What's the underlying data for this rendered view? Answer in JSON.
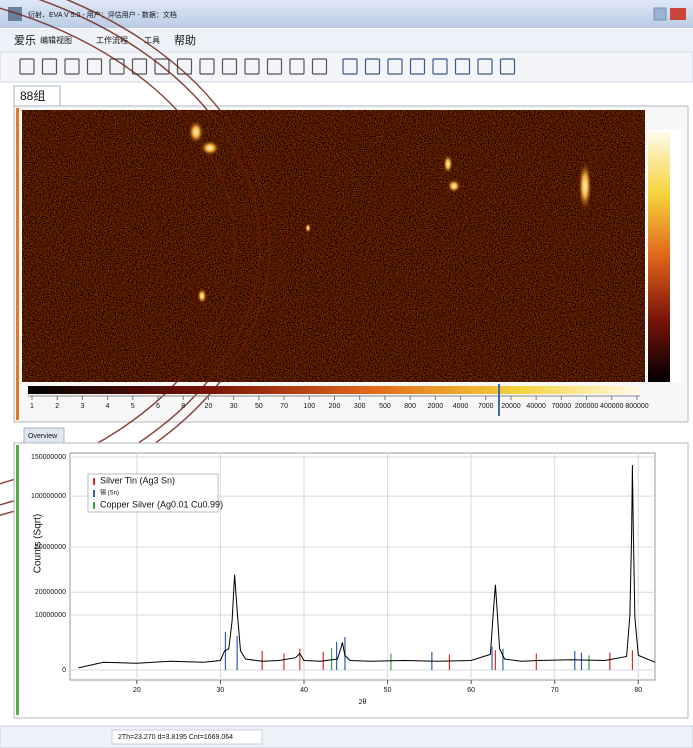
{
  "window": {
    "title": "衍射、EVA V 5.0 - 用户：评估用户 - 数据：文档"
  },
  "menu": [
    "爱乐",
    "编辑视图",
    "工作流程",
    "工具",
    "帮助"
  ],
  "frame_tab": "88组",
  "colorbar": {
    "labels": [
      "1",
      "2",
      "3",
      "4",
      "5",
      "6",
      "8",
      "20",
      "30",
      "50",
      "70",
      "100",
      "200",
      "300",
      "500",
      "800",
      "2000",
      "4000",
      "7000",
      "20000",
      "40000",
      "70000",
      "200000",
      "400000",
      "800000"
    ]
  },
  "overview_tab": "Overview",
  "status": "2Th=23.270 d=3.8195 Cnt=1669.064",
  "chart_data": {
    "type": "line",
    "x_label": "2θ",
    "y_label": "Counts (Sqrt)",
    "xlim": [
      12,
      82
    ],
    "xticks": [
      20,
      30,
      40,
      50,
      60,
      70,
      80
    ],
    "ylim": [
      0,
      150000000
    ],
    "y_scale": "sqrt",
    "yticks": [
      0,
      10000000,
      20000000,
      50000000,
      100000000,
      150000000
    ],
    "grid": true,
    "pattern": {
      "color": "#000000",
      "x": [
        13,
        16,
        20,
        24,
        28,
        30,
        30.5,
        31,
        31.4,
        31.7,
        32,
        32.4,
        33,
        35,
        37,
        39,
        39.5,
        40,
        42,
        44,
        44.4,
        44.6,
        44.9,
        45.5,
        48,
        52,
        56,
        60,
        62.3,
        62.6,
        62.9,
        63.1,
        63.4,
        64,
        66,
        68,
        72,
        76,
        78.6,
        79,
        79.2,
        79.3,
        79.4,
        79.6,
        80,
        82
      ],
      "values": [
        15000,
        200000,
        150000,
        250000,
        200000,
        300000,
        1200000,
        1500000,
        8000000,
        30000000,
        12000000,
        1200000,
        400000,
        250000,
        300000,
        500000,
        900000,
        300000,
        250000,
        400000,
        1500000,
        2500000,
        700000,
        300000,
        250000,
        300000,
        250000,
        300000,
        800000,
        9000000,
        24000000,
        12000000,
        1500000,
        400000,
        250000,
        300000,
        350000,
        300000,
        600000,
        10000000,
        60000000,
        139000000,
        65000000,
        9000000,
        700000,
        200000
      ]
    },
    "series": [
      {
        "name": "Silver Tin (Ag3 Sn)",
        "color": "#d9302c",
        "x": [
          35,
          37.6,
          39.5,
          42.3,
          57.4,
          62.9,
          67.8,
          76.6,
          79.3
        ],
        "values": [
          1200000,
          900000,
          1500000,
          1100000,
          800000,
          1300000,
          900000,
          1000000,
          1300000
        ]
      },
      {
        "name": "锡 (Sn)",
        "color": "#2f5fb3",
        "x": [
          30.6,
          32.0,
          43.9,
          44.9,
          55.3,
          62.5,
          63.8,
          72.4,
          73.2
        ],
        "values": [
          4800000,
          3800000,
          2600000,
          3600000,
          1100000,
          1800000,
          1500000,
          1200000,
          1000000
        ]
      },
      {
        "name": "Copper Silver (Ag0.01 Cu0.99)",
        "color": "#3aa04a",
        "x": [
          43.3,
          50.4,
          74.1
        ],
        "values": [
          1600000,
          900000,
          700000
        ]
      }
    ]
  }
}
